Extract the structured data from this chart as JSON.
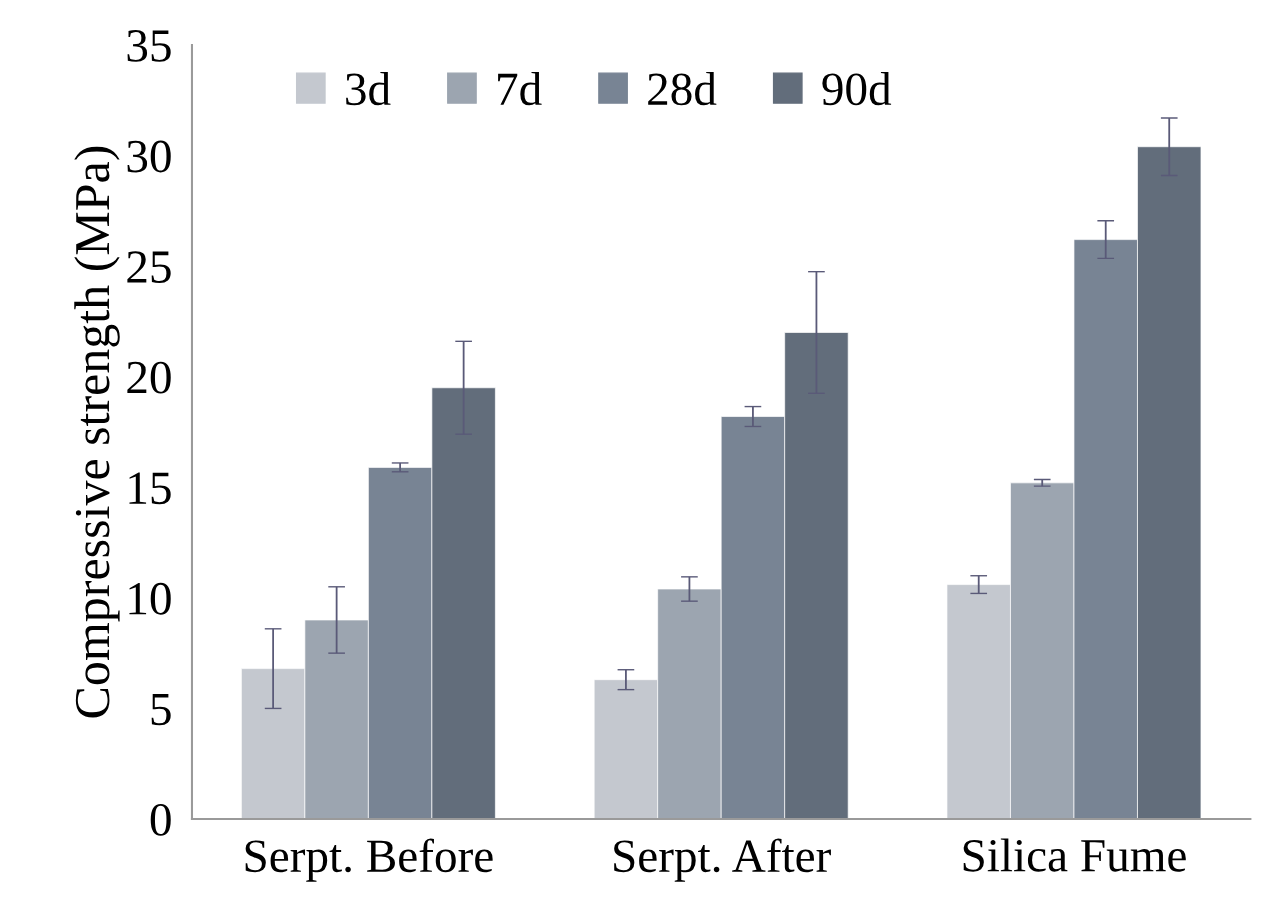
{
  "chart_data": {
    "type": "bar",
    "ylabel": "Compressive strength (MPa)",
    "categories": [
      "Serpt. Before",
      "Serpt. After",
      "Silica Fume"
    ],
    "series": [
      {
        "name": "3d",
        "color": "#c4c8cf",
        "values": [
          6.8,
          6.3,
          10.6
        ],
        "errors": [
          1.8,
          0.45,
          0.4
        ]
      },
      {
        "name": "7d",
        "color": "#9ca5b0",
        "values": [
          9.0,
          10.4,
          15.2
        ],
        "errors": [
          1.5,
          0.55,
          0.15
        ]
      },
      {
        "name": "28d",
        "color": "#788494",
        "values": [
          15.9,
          18.2,
          26.2
        ],
        "errors": [
          0.2,
          0.45,
          0.85
        ]
      },
      {
        "name": "90d",
        "color": "#626d7b",
        "values": [
          19.5,
          22.0,
          30.4
        ],
        "errors": [
          2.1,
          2.75,
          1.3
        ]
      }
    ],
    "ylim": [
      0,
      35
    ],
    "yticks": [
      0,
      5,
      10,
      15,
      20,
      25,
      30,
      35
    ],
    "grid": false,
    "legend": "top"
  }
}
